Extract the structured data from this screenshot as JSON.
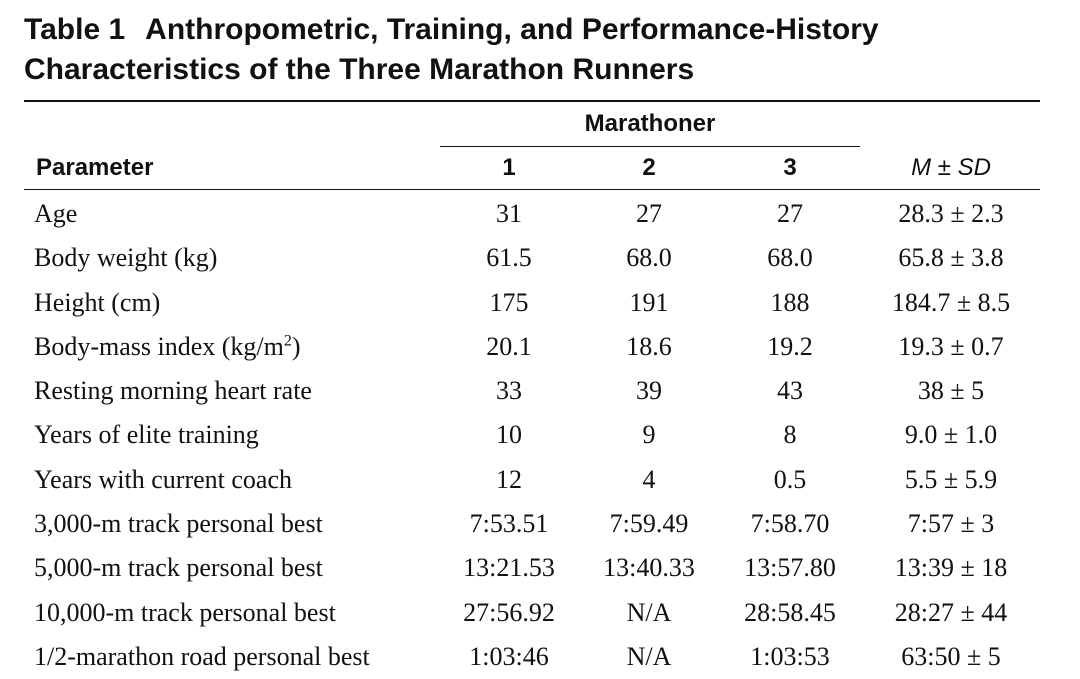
{
  "table": {
    "number": "Table 1",
    "title_line1": "Anthropometric, Training, and Performance-History",
    "title_line2": "Characteristics of the Three Marathon Runners",
    "group_header": "Marathoner",
    "columns": {
      "parameter": "Parameter",
      "m1": "1",
      "m2": "2",
      "m3": "3",
      "summary_m": "M",
      "summary_pm": " ± ",
      "summary_sd": "SD"
    },
    "rows": [
      {
        "parameter": "Age",
        "m1": "31",
        "m2": "27",
        "m3": "27",
        "mean_sd": "28.3 ± 2.3"
      },
      {
        "parameter": "Body weight (kg)",
        "m1": "61.5",
        "m2": "68.0",
        "m3": "68.0",
        "mean_sd": "65.8 ± 3.8"
      },
      {
        "parameter": "Height (cm)",
        "m1": "175",
        "m2": "191",
        "m3": "188",
        "mean_sd": "184.7 ± 8.5"
      },
      {
        "parameter": "Body-mass index (kg/m",
        "parameter_sup": "2",
        "parameter_suffix": ")",
        "m1": "20.1",
        "m2": "18.6",
        "m3": "19.2",
        "mean_sd": "19.3 ± 0.7"
      },
      {
        "parameter": "Resting morning heart rate",
        "m1": "33",
        "m2": "39",
        "m3": "43",
        "mean_sd": "38 ± 5"
      },
      {
        "parameter": "Years of elite training",
        "m1": "10",
        "m2": "9",
        "m3": "8",
        "mean_sd": "9.0 ± 1.0"
      },
      {
        "parameter": "Years with current coach",
        "m1": "12",
        "m2": "4",
        "m3": "0.5",
        "mean_sd": "5.5 ± 5.9"
      },
      {
        "parameter": "3,000-m track personal best",
        "m1": "7:53.51",
        "m2": "7:59.49",
        "m3": "7:58.70",
        "mean_sd": "7:57 ± 3"
      },
      {
        "parameter": "5,000-m track personal best",
        "m1": "13:21.53",
        "m2": "13:40.33",
        "m3": "13:57.80",
        "mean_sd": "13:39 ± 18"
      },
      {
        "parameter": "10,000-m track personal best",
        "m1": "27:56.92",
        "m2": "N/A",
        "m3": "28:58.45",
        "mean_sd": "28:27 ± 44"
      },
      {
        "parameter": "1/2-marathon road personal best",
        "m1": "1:03:46",
        "m2": "N/A",
        "m3": "1:03:53",
        "mean_sd": "63:50 ± 5"
      }
    ]
  }
}
